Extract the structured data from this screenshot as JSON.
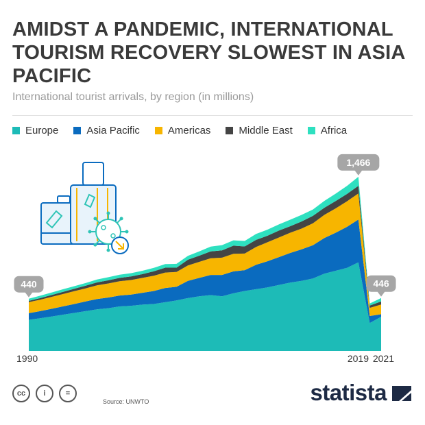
{
  "header": {
    "title": "AMIDST A PANDEMIC, INTERNATIONAL TOURISM RECOVERY SLOWEST IN ASIA PACIFIC",
    "subtitle": "International tourist arrivals, by region (in millions)"
  },
  "footer": {
    "source": "Source: UNWTO",
    "brand": "statista",
    "license_icons": [
      "cc-icon",
      "attribution-icon",
      "no-derivatives-icon"
    ]
  },
  "colors": {
    "Europe": "#1dbbb7",
    "Asia Pacific": "#0a6bbf",
    "Americas": "#f7b500",
    "Middle East": "#444444",
    "Africa": "#2ee0c0",
    "callout": "#a6a6a6"
  },
  "chart_data": {
    "type": "area",
    "stacked": true,
    "x": [
      1990,
      1991,
      1992,
      1993,
      1994,
      1995,
      1996,
      1997,
      1998,
      1999,
      2000,
      2001,
      2002,
      2003,
      2004,
      2005,
      2006,
      2007,
      2008,
      2009,
      2010,
      2011,
      2012,
      2013,
      2014,
      2015,
      2016,
      2017,
      2018,
      2019,
      2020,
      2021
    ],
    "series": [
      {
        "name": "Europe",
        "values": [
          262,
          275,
          290,
          305,
          320,
          335,
          350,
          360,
          375,
          380,
          390,
          395,
          410,
          425,
          445,
          460,
          470,
          460,
          485,
          505,
          520,
          535,
          555,
          575,
          590,
          610,
          650,
          675,
          700,
          746,
          235,
          288
        ]
      },
      {
        "name": "Asia Pacific",
        "values": [
          56,
          60,
          65,
          70,
          75,
          82,
          87,
          90,
          92,
          95,
          100,
          110,
          120,
          115,
          145,
          155,
          170,
          180,
          185,
          175,
          205,
          220,
          235,
          250,
          265,
          280,
          300,
          320,
          345,
          360,
          59,
          21
        ]
      },
      {
        "name": "Americas",
        "values": [
          93,
          96,
          100,
          104,
          108,
          110,
          115,
          118,
          120,
          122,
          125,
          128,
          130,
          125,
          130,
          135,
          140,
          145,
          148,
          140,
          150,
          160,
          165,
          170,
          175,
          185,
          195,
          205,
          215,
          219,
          69,
          82
        ]
      },
      {
        "name": "Middle East",
        "values": [
          11,
          14,
          16,
          18,
          20,
          23,
          25,
          27,
          28,
          30,
          32,
          38,
          41,
          36,
          48,
          52,
          58,
          62,
          68,
          60,
          60,
          55,
          58,
          55,
          60,
          62,
          60,
          62,
          62,
          65,
          19,
          26
        ]
      },
      {
        "name": "Africa",
        "values": [
          18,
          20,
          21,
          22,
          22,
          22,
          24,
          26,
          27,
          28,
          28,
          29,
          30,
          32,
          33,
          36,
          40,
          44,
          45,
          46,
          50,
          51,
          52,
          55,
          55,
          54,
          58,
          62,
          68,
          76,
          18,
          29
        ]
      }
    ],
    "totals_labeled": {
      "1990": "440",
      "2019": "1,466",
      "2021": "446"
    },
    "x_tick_labels": [
      "1990",
      "2019",
      "2021"
    ],
    "ylim": [
      0,
      1500
    ],
    "grid": false,
    "legend_position": "top-left"
  }
}
